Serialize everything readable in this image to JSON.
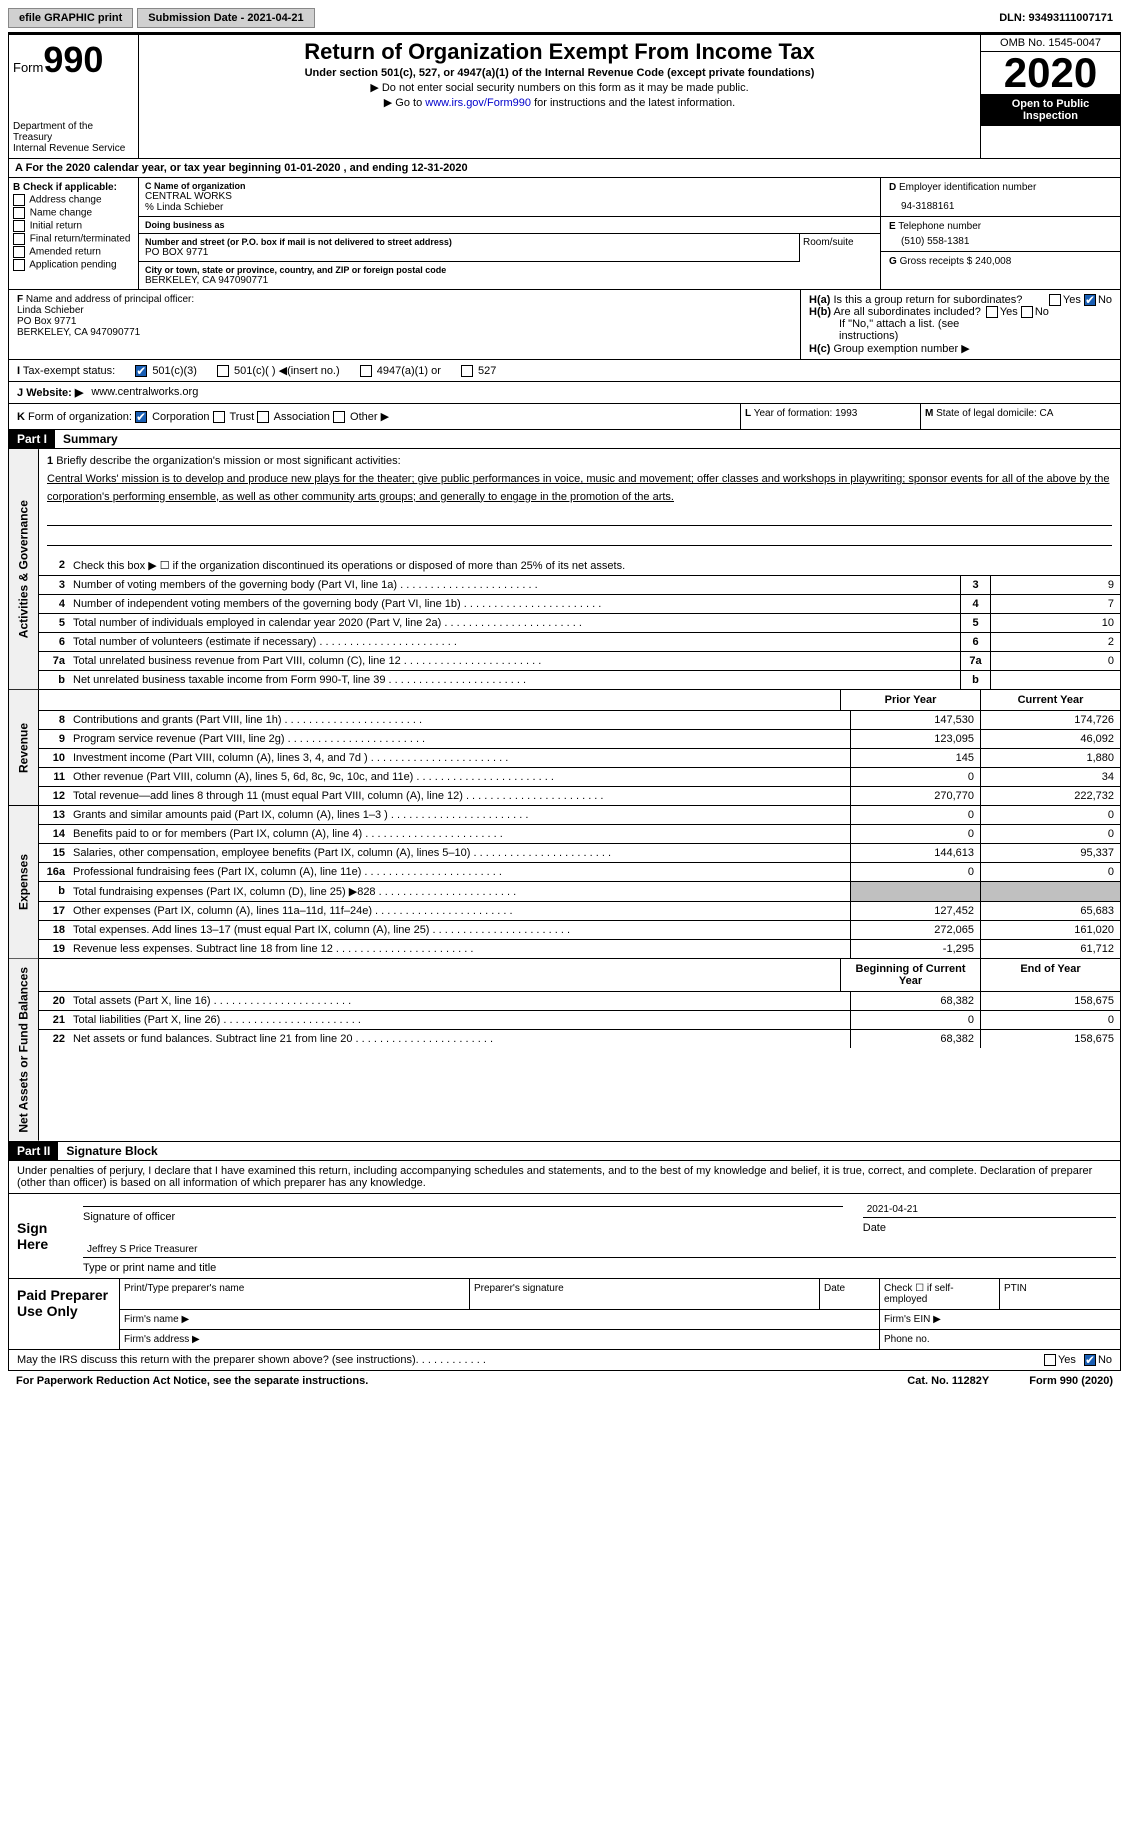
{
  "topbar": {
    "efile": "efile GRAPHIC print",
    "submission": "Submission Date - 2021-04-21",
    "dln": "DLN: 93493111007171"
  },
  "header": {
    "form_prefix": "Form",
    "form_num": "990",
    "dept": "Department of the Treasury\nInternal Revenue Service",
    "title": "Return of Organization Exempt From Income Tax",
    "subtitle": "Under section 501(c), 527, or 4947(a)(1) of the Internal Revenue Code (except private foundations)",
    "instr1": "▶ Do not enter social security numbers on this form as it may be made public.",
    "instr2_prefix": "▶ Go to ",
    "instr2_link": "www.irs.gov/Form990",
    "instr2_suffix": " for instructions and the latest information.",
    "omb": "OMB No. 1545-0047",
    "year": "2020",
    "inspect": "Open to Public Inspection"
  },
  "period": {
    "text": "For the 2020 calendar year, or tax year beginning 01-01-2020    , and ending 12-31-2020"
  },
  "B": {
    "label": "Check if applicable:",
    "items": [
      "Address change",
      "Name change",
      "Initial return",
      "Final return/terminated",
      "Amended return",
      "Application pending"
    ]
  },
  "C": {
    "label": "Name of organization",
    "name": "CENTRAL WORKS",
    "care": "% Linda Schieber",
    "dba_label": "Doing business as",
    "street_label": "Number and street (or P.O. box if mail is not delivered to street address)",
    "street": "PO BOX 9771",
    "room_label": "Room/suite",
    "city_label": "City or town, state or province, country, and ZIP or foreign postal code",
    "city": "BERKELEY, CA  947090771"
  },
  "D": {
    "label": "Employer identification number",
    "ein": "94-3188161"
  },
  "E": {
    "label": "Telephone number",
    "phone": "(510) 558-1381"
  },
  "G": {
    "label": "Gross receipts $",
    "amount": "240,008"
  },
  "F": {
    "label": "Name and address of principal officer:",
    "name": "Linda Schieber",
    "addr1": "PO Box 9771",
    "addr2": "BERKELEY, CA  947090771"
  },
  "H": {
    "a": "Is this a group return for subordinates?",
    "b": "Are all subordinates included?",
    "note": "If \"No,\" attach a list. (see instructions)",
    "c": "Group exemption number ▶"
  },
  "I": {
    "label": "Tax-exempt status:",
    "opts": [
      "501(c)(3)",
      "501(c)(  ) ◀(insert no.)",
      "4947(a)(1) or",
      "527"
    ]
  },
  "J": {
    "label": "Website: ▶",
    "url": "www.centralworks.org"
  },
  "K": {
    "label": "Form of organization:",
    "opts": [
      "Corporation",
      "Trust",
      "Association",
      "Other ▶"
    ]
  },
  "L": {
    "label": "Year of formation:",
    "val": "1993"
  },
  "M": {
    "label": "State of legal domicile:",
    "val": "CA"
  },
  "part1": {
    "header": "Part I",
    "title": "Summary"
  },
  "mission": {
    "num": "1",
    "label": "Briefly describe the organization's mission or most significant activities:",
    "text": "Central Works' mission is to develop and produce new plays for the theater; give public performances in voice, music and movement; offer classes and workshops in playwriting; sponsor events for all of the above by the corporation's performing ensemble, as well as other community arts groups; and generally to engage in the promotion of the arts."
  },
  "gov": {
    "2": "Check this box ▶ ☐  if the organization discontinued its operations or disposed of more than 25% of its net assets.",
    "rows": [
      {
        "n": "3",
        "d": "Number of voting members of the governing body (Part VI, line 1a)",
        "v": "9"
      },
      {
        "n": "4",
        "d": "Number of independent voting members of the governing body (Part VI, line 1b)",
        "v": "7"
      },
      {
        "n": "5",
        "d": "Total number of individuals employed in calendar year 2020 (Part V, line 2a)",
        "v": "10"
      },
      {
        "n": "6",
        "d": "Total number of volunteers (estimate if necessary)",
        "v": "2"
      },
      {
        "n": "7a",
        "d": "Total unrelated business revenue from Part VIII, column (C), line 12",
        "v": "0"
      },
      {
        "n": "b",
        "d": "Net unrelated business taxable income from Form 990-T, line 39",
        "v": ""
      }
    ]
  },
  "revenue": {
    "head": {
      "py": "Prior Year",
      "cy": "Current Year"
    },
    "rows": [
      {
        "n": "8",
        "d": "Contributions and grants (Part VIII, line 1h)",
        "py": "147,530",
        "cy": "174,726"
      },
      {
        "n": "9",
        "d": "Program service revenue (Part VIII, line 2g)",
        "py": "123,095",
        "cy": "46,092"
      },
      {
        "n": "10",
        "d": "Investment income (Part VIII, column (A), lines 3, 4, and 7d )",
        "py": "145",
        "cy": "1,880"
      },
      {
        "n": "11",
        "d": "Other revenue (Part VIII, column (A), lines 5, 6d, 8c, 9c, 10c, and 11e)",
        "py": "0",
        "cy": "34"
      },
      {
        "n": "12",
        "d": "Total revenue—add lines 8 through 11 (must equal Part VIII, column (A), line 12)",
        "py": "270,770",
        "cy": "222,732"
      }
    ]
  },
  "expenses": {
    "rows": [
      {
        "n": "13",
        "d": "Grants and similar amounts paid (Part IX, column (A), lines 1–3 )",
        "py": "0",
        "cy": "0"
      },
      {
        "n": "14",
        "d": "Benefits paid to or for members (Part IX, column (A), line 4)",
        "py": "0",
        "cy": "0"
      },
      {
        "n": "15",
        "d": "Salaries, other compensation, employee benefits (Part IX, column (A), lines 5–10)",
        "py": "144,613",
        "cy": "95,337"
      },
      {
        "n": "16a",
        "d": "Professional fundraising fees (Part IX, column (A), line 11e)",
        "py": "0",
        "cy": "0"
      },
      {
        "n": "b",
        "d": "Total fundraising expenses (Part IX, column (D), line 25) ▶828",
        "py": "grey",
        "cy": "grey"
      },
      {
        "n": "17",
        "d": "Other expenses (Part IX, column (A), lines 11a–11d, 11f–24e)",
        "py": "127,452",
        "cy": "65,683"
      },
      {
        "n": "18",
        "d": "Total expenses. Add lines 13–17 (must equal Part IX, column (A), line 25)",
        "py": "272,065",
        "cy": "161,020"
      },
      {
        "n": "19",
        "d": "Revenue less expenses. Subtract line 18 from line 12",
        "py": "-1,295",
        "cy": "61,712"
      }
    ]
  },
  "netassets": {
    "head": {
      "by": "Beginning of Current Year",
      "ey": "End of Year"
    },
    "rows": [
      {
        "n": "20",
        "d": "Total assets (Part X, line 16)",
        "py": "68,382",
        "cy": "158,675"
      },
      {
        "n": "21",
        "d": "Total liabilities (Part X, line 26)",
        "py": "0",
        "cy": "0"
      },
      {
        "n": "22",
        "d": "Net assets or fund balances. Subtract line 21 from line 20",
        "py": "68,382",
        "cy": "158,675"
      }
    ]
  },
  "part2": {
    "header": "Part II",
    "title": "Signature Block"
  },
  "sig": {
    "text": "Under penalties of perjury, I declare that I have examined this return, including accompanying schedules and statements, and to the best of my knowledge and belief, it is true, correct, and complete. Declaration of preparer (other than officer) is based on all information of which preparer has any knowledge.",
    "sign_here": "Sign Here",
    "sig_officer": "Signature of officer",
    "date": "2021-04-21",
    "date_label": "Date",
    "name": "Jeffrey S Price  Treasurer",
    "name_label": "Type or print name and title"
  },
  "prep": {
    "label": "Paid Preparer Use Only",
    "cols": [
      "Print/Type preparer's name",
      "Preparer's signature",
      "Date",
      "Check ☐ if self-employed",
      "PTIN"
    ],
    "firm_name": "Firm's name  ▶",
    "firm_ein": "Firm's EIN ▶",
    "firm_addr": "Firm's address ▶",
    "phone": "Phone no."
  },
  "footer": {
    "q": "May the IRS discuss this return with the preparer shown above? (see instructions)",
    "paperwork": "For Paperwork Reduction Act Notice, see the separate instructions.",
    "cat": "Cat. No. 11282Y",
    "form": "Form 990 (2020)"
  },
  "vtabs": {
    "gov": "Activities & Governance",
    "rev": "Revenue",
    "exp": "Expenses",
    "net": "Net Assets or Fund Balances"
  }
}
